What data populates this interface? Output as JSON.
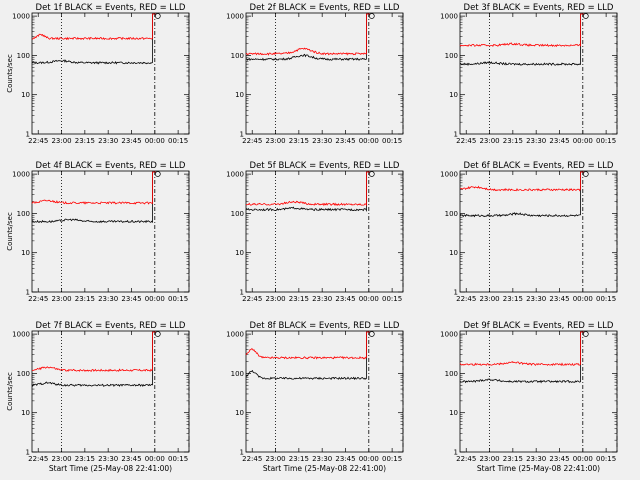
{
  "colors": {
    "background": "#f0f0f0",
    "events": "#000000",
    "lld": "#ff0000",
    "axes": "#000000"
  },
  "chart_data": [
    {
      "type": "line",
      "title": "Det 1f BLACK = Events, RED = LLD",
      "ylabel": "Counts/sec",
      "xlabel": "",
      "series": [
        {
          "color": "black",
          "level": 65,
          "wave": [
            {
              "x": 23.0,
              "dy": 0.05,
              "w": 0.12
            }
          ]
        },
        {
          "color": "red",
          "level": 270,
          "wave": [
            {
              "x": 22.78,
              "dy": 0.1,
              "w": 0.05
            }
          ]
        }
      ]
    },
    {
      "type": "line",
      "title": "Det 2f BLACK = Events, RED = LLD",
      "ylabel": "",
      "xlabel": "",
      "series": [
        {
          "color": "black",
          "level": 80,
          "wave": [
            {
              "x": 23.3,
              "dy": 0.1,
              "w": 0.12
            }
          ]
        },
        {
          "color": "red",
          "level": 110,
          "wave": [
            {
              "x": 23.3,
              "dy": 0.13,
              "w": 0.12
            }
          ]
        }
      ]
    },
    {
      "type": "line",
      "title": "Det 3f BLACK = Events, RED = LLD",
      "ylabel": "",
      "xlabel": "",
      "series": [
        {
          "color": "black",
          "level": 60,
          "wave": [
            {
              "x": 23.0,
              "dy": 0.04,
              "w": 0.12
            }
          ]
        },
        {
          "color": "red",
          "level": 180,
          "wave": [
            {
              "x": 23.25,
              "dy": 0.04,
              "w": 0.12
            }
          ]
        }
      ]
    },
    {
      "type": "line",
      "title": "Det 4f BLACK = Events, RED = LLD",
      "ylabel": "Counts/sec",
      "xlabel": "",
      "series": [
        {
          "color": "black",
          "level": 62,
          "wave": [
            {
              "x": 23.1,
              "dy": 0.05,
              "w": 0.12
            }
          ]
        },
        {
          "color": "red",
          "level": 185,
          "wave": [
            {
              "x": 22.85,
              "dy": 0.06,
              "w": 0.1
            }
          ]
        }
      ]
    },
    {
      "type": "line",
      "title": "Det 5f BLACK = Events, RED = LLD",
      "ylabel": "",
      "xlabel": "",
      "series": [
        {
          "color": "black",
          "level": 125,
          "wave": [
            {
              "x": 23.2,
              "dy": 0.04,
              "w": 0.1
            }
          ]
        },
        {
          "color": "red",
          "level": 170,
          "wave": [
            {
              "x": 23.2,
              "dy": 0.06,
              "w": 0.12
            }
          ]
        }
      ]
    },
    {
      "type": "line",
      "title": "Det 6f BLACK = Events, RED = LLD",
      "ylabel": "",
      "xlabel": "",
      "series": [
        {
          "color": "black",
          "level": 88,
          "wave": [
            {
              "x": 23.3,
              "dy": 0.05,
              "w": 0.1
            }
          ]
        },
        {
          "color": "red",
          "level": 400,
          "wave": [
            {
              "x": 22.85,
              "dy": 0.07,
              "w": 0.12
            }
          ]
        }
      ]
    },
    {
      "type": "line",
      "title": "Det 7f BLACK = Events, RED = LLD",
      "ylabel": "Counts/sec",
      "xlabel": "Start Time (25-May-08 22:41:00)",
      "series": [
        {
          "color": "black",
          "level": 50,
          "wave": [
            {
              "x": 22.85,
              "dy": 0.06,
              "w": 0.1
            }
          ]
        },
        {
          "color": "red",
          "level": 120,
          "wave": [
            {
              "x": 22.85,
              "dy": 0.08,
              "w": 0.1
            }
          ]
        }
      ]
    },
    {
      "type": "line",
      "title": "Det 8f BLACK = Events, RED = LLD",
      "ylabel": "",
      "xlabel": "Start Time (25-May-08 22:41:00)",
      "series": [
        {
          "color": "black",
          "level": 75,
          "wave": [
            {
              "x": 22.75,
              "dy": 0.18,
              "w": 0.06
            }
          ]
        },
        {
          "color": "red",
          "level": 250,
          "wave": [
            {
              "x": 22.75,
              "dy": 0.22,
              "w": 0.06
            }
          ]
        }
      ]
    },
    {
      "type": "line",
      "title": "Det 9f BLACK = Events, RED = LLD",
      "ylabel": "",
      "xlabel": "Start Time (25-May-08 22:41:00)",
      "series": [
        {
          "color": "black",
          "level": 62,
          "wave": [
            {
              "x": 23.0,
              "dy": 0.05,
              "w": 0.12
            }
          ]
        },
        {
          "color": "red",
          "level": 170,
          "wave": [
            {
              "x": 23.25,
              "dy": 0.05,
              "w": 0.12
            }
          ]
        }
      ]
    }
  ],
  "axes": {
    "x_range": [
      "22:41:00",
      "00:22:00"
    ],
    "x_ticks": [
      "22:45",
      "23:00",
      "23:15",
      "23:30",
      "23:45",
      "00:00",
      "00:15"
    ],
    "y_scale": "log",
    "y_range": [
      1,
      1200
    ],
    "y_ticks": [
      "1",
      "10",
      "100",
      "1000"
    ],
    "markers": {
      "dotted": "23:00",
      "dashdot": "00:00",
      "dashed": "00:22",
      "jump": "23:58:30",
      "end": "00:00:30"
    }
  }
}
